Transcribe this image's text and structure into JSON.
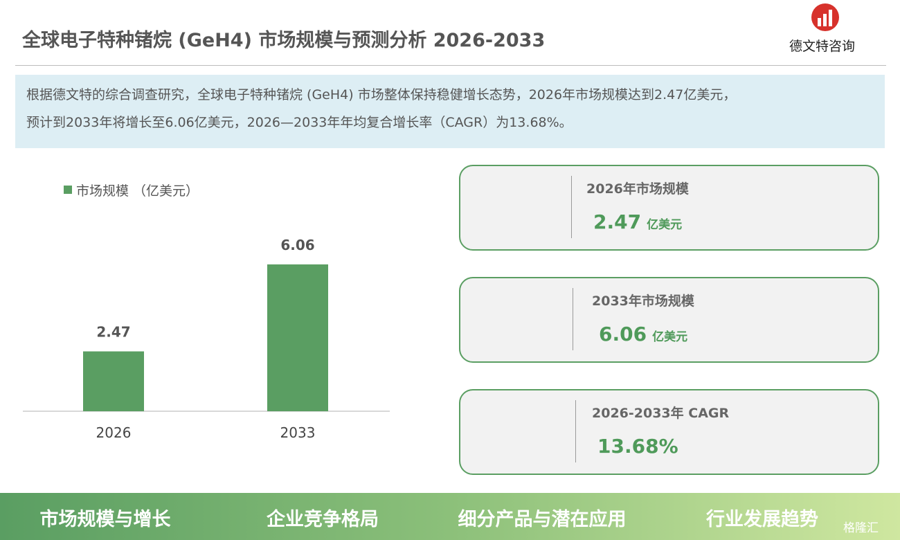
{
  "header": {
    "title": "全球电子特种锗烷 (GeH4) 市场规模与预测分析 2026-2033",
    "brand": "德文特咨询"
  },
  "summary": [
    "根据德文特的综合调查研究，全球电子特种锗烷 (GeH4) 市场整体保持稳健增长态势，2026年市场规模达到2.47亿美元，",
    "预计到2033年将增长至6.06亿美元，2026—2033年年均复合增长率（CAGR）为13.68%。"
  ],
  "chart_data": {
    "type": "bar",
    "categories": [
      "2026",
      "2033"
    ],
    "series": [
      {
        "name": "市场规模 （亿美元）",
        "color": "#5a9e62",
        "values": [
          2.47,
          6.06
        ]
      }
    ],
    "ylim": [
      0,
      7
    ]
  },
  "cards": [
    {
      "label": "2026年市场规模",
      "value": "2.47",
      "unit": "亿美元"
    },
    {
      "label": "2033年市场规模",
      "value": "6.06",
      "unit": "亿美元"
    },
    {
      "label": "2026-2033年 CAGR",
      "value": "13.68%"
    }
  ],
  "nav": [
    "市场规模与增长",
    "企业竞争格局",
    "细分产品与潜在应用",
    "行业发展趋势"
  ],
  "watermark": "格隆汇"
}
